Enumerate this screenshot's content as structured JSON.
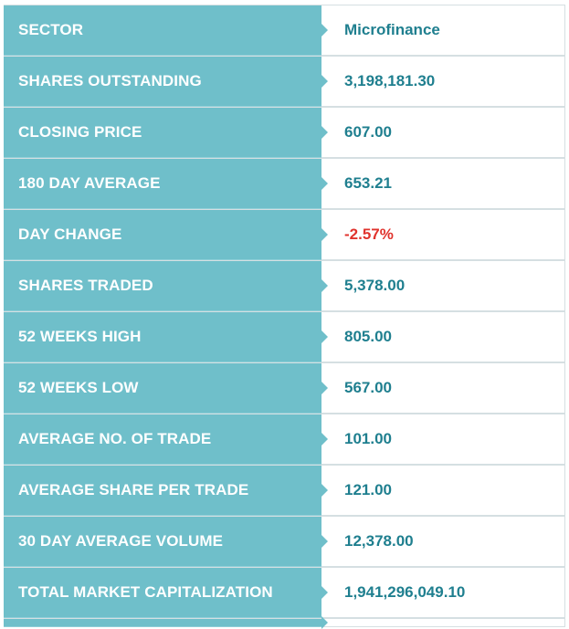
{
  "rows": [
    {
      "label": "SECTOR",
      "value": "Microfinance"
    },
    {
      "label": "SHARES OUTSTANDING",
      "value": "3,198,181.30"
    },
    {
      "label": "CLOSING PRICE",
      "value": "607.00"
    },
    {
      "label": "180 DAY AVERAGE",
      "value": "653.21"
    },
    {
      "label": "DAY CHANGE",
      "value": "-2.57%"
    },
    {
      "label": "SHARES TRADED",
      "value": "5,378.00"
    },
    {
      "label": "52 WEEKS HIGH",
      "value": "805.00"
    },
    {
      "label": "52 WEEKS LOW",
      "value": "567.00"
    },
    {
      "label": "AVERAGE NO. OF TRADE",
      "value": "101.00"
    },
    {
      "label": "AVERAGE SHARE PER TRADE",
      "value": "121.00"
    },
    {
      "label": "30 DAY AVERAGE VOLUME",
      "value": "12,378.00"
    },
    {
      "label": "TOTAL MARKET CAPITALIZATION",
      "value": "1,941,296,049.10"
    }
  ],
  "colors": {
    "label_bg": "#6fbfca",
    "value_text": "#1f7f8f",
    "negative_text": "#e0332d"
  }
}
